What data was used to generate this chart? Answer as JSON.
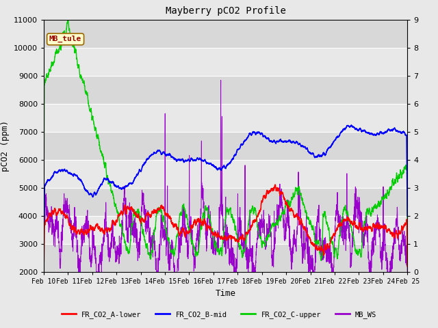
{
  "title": "Mayberry pCO2 Profile",
  "xlabel": "Time",
  "ylabel_left": "pCO2 (ppm)",
  "ylim_left": [
    2000,
    11000
  ],
  "ylim_right": [
    0.0,
    9.0
  ],
  "yticks_left": [
    2000,
    3000,
    4000,
    5000,
    6000,
    7000,
    8000,
    9000,
    10000,
    11000
  ],
  "yticks_right": [
    0.0,
    1.0,
    2.0,
    3.0,
    4.0,
    5.0,
    6.0,
    7.0,
    8.0,
    9.0
  ],
  "xtick_labels": [
    "Feb 10",
    "Feb 11",
    "Feb 12",
    "Feb 13",
    "Feb 14",
    "Feb 15",
    "Feb 16",
    "Feb 17",
    "Feb 18",
    "Feb 19",
    "Feb 20",
    "Feb 21",
    "Feb 22",
    "Feb 23",
    "Feb 24",
    "Feb 25"
  ],
  "colors": {
    "red": "#ff0000",
    "blue": "#0000ff",
    "green": "#00cc00",
    "purple": "#9900cc",
    "annotation_bg": "#ffffcc",
    "annotation_border": "#996600",
    "annotation_text": "#990000"
  },
  "annotation_text": "MB_tule",
  "legend_labels": [
    "FR_CO2_A-lower",
    "FR_CO2_B-mid",
    "FR_CO2_C-upper",
    "MB_WS"
  ],
  "legend_colors": [
    "#ff0000",
    "#0000ff",
    "#00cc00",
    "#9900cc"
  ],
  "fig_facecolor": "#e8e8e8",
  "plot_facecolor": "#e8e8e8",
  "grid_color": "#ffffff",
  "band1_color": "#d8d8d8",
  "band2_color": "#e8e8e8"
}
